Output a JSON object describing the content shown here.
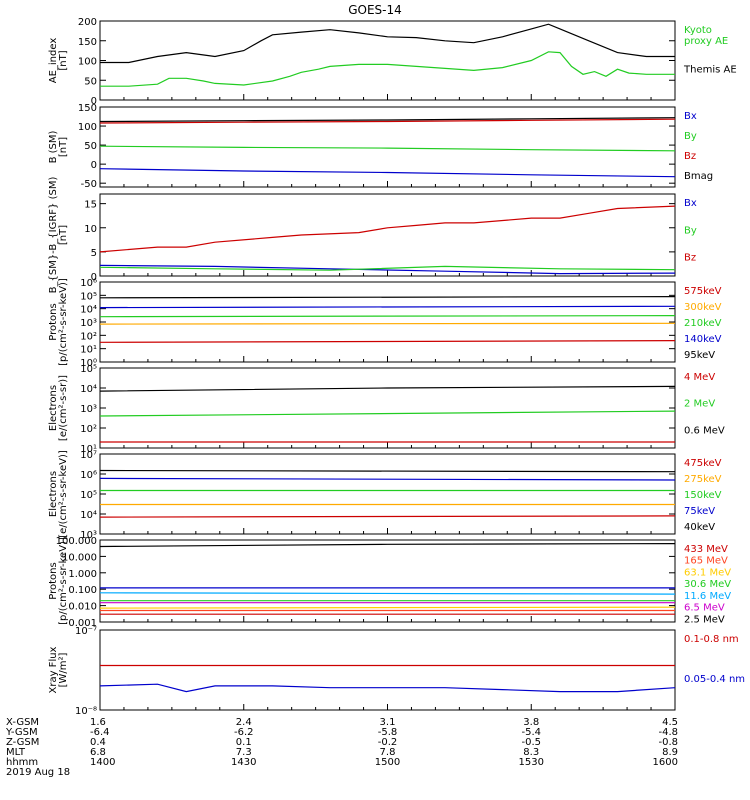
{
  "title": "GOES-14",
  "footer": {
    "row_labels": [
      "X-GSM",
      "Y-GSM",
      "Z-GSM",
      "MLT",
      "hhmm",
      "2019 Aug 18"
    ],
    "columns": [
      [
        "1.6",
        "-6.4",
        "0.4",
        "6.8",
        "1400"
      ],
      [
        "2.4",
        "-6.2",
        "0.1",
        "7.3",
        "1430"
      ],
      [
        "3.1",
        "-5.8",
        "-0.2",
        "7.8",
        "1500"
      ],
      [
        "3.8",
        "-5.4",
        "-0.5",
        "8.3",
        "1530"
      ],
      [
        "4.5",
        "-4.8",
        "-0.8",
        "8.9",
        "1600"
      ]
    ]
  },
  "chart_data": [
    {
      "type": "line",
      "ylabel": "AE_index\n[nT]",
      "ylim": [
        0,
        200
      ],
      "yticks": [
        "0",
        "50",
        "100",
        "150",
        "200"
      ],
      "series": [
        {
          "name": "Kyoto\nproxy AE",
          "color": "#22cc22",
          "x": [
            0,
            5,
            10,
            12,
            15,
            18,
            20,
            25,
            30,
            33,
            35,
            38,
            40,
            45,
            50,
            55,
            60,
            65,
            70,
            75,
            78,
            80,
            82,
            84,
            86,
            88,
            90,
            92,
            95,
            100
          ],
          "y": [
            35,
            35,
            40,
            55,
            55,
            48,
            42,
            38,
            48,
            60,
            70,
            78,
            85,
            90,
            90,
            85,
            80,
            75,
            82,
            100,
            122,
            120,
            85,
            65,
            72,
            60,
            78,
            68,
            65,
            65
          ]
        },
        {
          "name": "Themis AE",
          "color": "#000000",
          "x": [
            0,
            5,
            10,
            15,
            20,
            25,
            28,
            30,
            35,
            40,
            45,
            50,
            55,
            60,
            65,
            70,
            75,
            78,
            80,
            85,
            90,
            95,
            100
          ],
          "y": [
            95,
            95,
            110,
            120,
            110,
            125,
            150,
            165,
            172,
            178,
            170,
            160,
            158,
            150,
            145,
            160,
            180,
            192,
            180,
            150,
            120,
            110,
            110
          ]
        }
      ]
    },
    {
      "type": "line",
      "ylabel": "B (SM)\n[nT]",
      "ylim": [
        -60,
        150
      ],
      "yticks": [
        "-50",
        "0",
        "50",
        "100",
        "150"
      ],
      "series": [
        {
          "name": "Bx",
          "color": "#0000cc",
          "x": [
            0,
            25,
            50,
            75,
            100
          ],
          "y": [
            -12,
            -18,
            -22,
            -28,
            -33
          ]
        },
        {
          "name": "By",
          "color": "#22cc22",
          "x": [
            0,
            25,
            50,
            75,
            100
          ],
          "y": [
            47,
            44,
            42,
            38,
            35
          ]
        },
        {
          "name": "Bz",
          "color": "#cc0000",
          "x": [
            0,
            25,
            50,
            75,
            100
          ],
          "y": [
            108,
            110,
            112,
            115,
            118
          ]
        },
        {
          "name": "Bmag",
          "color": "#000000",
          "x": [
            0,
            25,
            50,
            75,
            100
          ],
          "y": [
            112,
            114,
            116,
            119,
            122
          ]
        }
      ]
    },
    {
      "type": "line",
      "ylabel": "B_{SM}-B_{IGRF} (SM)\n[nT]",
      "ylim": [
        0,
        17
      ],
      "yticks": [
        "0",
        "5",
        "10",
        "15"
      ],
      "series": [
        {
          "name": "Bx",
          "color": "#0000cc",
          "x": [
            0,
            20,
            40,
            60,
            80,
            100
          ],
          "y": [
            2.2,
            2.0,
            1.5,
            1.0,
            0.5,
            0.6
          ]
        },
        {
          "name": "By",
          "color": "#22cc22",
          "x": [
            0,
            20,
            40,
            60,
            80,
            100
          ],
          "y": [
            1.8,
            1.5,
            1.2,
            2.0,
            1.5,
            1.3
          ]
        },
        {
          "name": "Bz",
          "color": "#cc0000",
          "x": [
            0,
            10,
            15,
            20,
            30,
            35,
            45,
            50,
            55,
            60,
            65,
            75,
            80,
            85,
            90,
            100
          ],
          "y": [
            5,
            6,
            6,
            7,
            8,
            8.5,
            9,
            10,
            10.5,
            11,
            11,
            12,
            12,
            13,
            14,
            14.5
          ]
        }
      ]
    },
    {
      "type": "line",
      "ylabel": "Protons\n[p/(cm²-s-sr-keV)]",
      "yscale": "log",
      "ylim": [
        1,
        1000000
      ],
      "yticks": [
        "10⁰",
        "10¹",
        "10²",
        "10³",
        "10⁴",
        "10⁵",
        "10⁶"
      ],
      "series": [
        {
          "name": "575keV",
          "color": "#cc0000",
          "x": [
            0,
            100
          ],
          "y": [
            30,
            40
          ]
        },
        {
          "name": "300keV",
          "color": "#ffaa00",
          "x": [
            0,
            100
          ],
          "y": [
            700,
            800
          ]
        },
        {
          "name": "210keV",
          "color": "#22cc22",
          "x": [
            0,
            100
          ],
          "y": [
            2500,
            3000
          ]
        },
        {
          "name": "140keV",
          "color": "#0000cc",
          "x": [
            0,
            100
          ],
          "y": [
            12000,
            15000
          ]
        },
        {
          "name": "95keV",
          "color": "#000000",
          "x": [
            0,
            100
          ],
          "y": [
            65000,
            80000
          ]
        }
      ]
    },
    {
      "type": "line",
      "ylabel": "Electrons\n[e/(cm²-s-sr)]",
      "yscale": "log",
      "ylim": [
        10,
        100000
      ],
      "yticks": [
        "10¹",
        "10²",
        "10³",
        "10⁴",
        "10⁵"
      ],
      "series": [
        {
          "name": "4 MeV",
          "color": "#cc0000",
          "x": [
            0,
            100
          ],
          "y": [
            20,
            20
          ]
        },
        {
          "name": "2 MeV",
          "color": "#22cc22",
          "x": [
            0,
            100
          ],
          "y": [
            400,
            700
          ]
        },
        {
          "name": "0.6 MeV",
          "color": "#000000",
          "x": [
            0,
            50,
            100
          ],
          "y": [
            7000,
            10000,
            12000
          ]
        }
      ]
    },
    {
      "type": "line",
      "ylabel": "Electrons\n[e/(cm²-s-sr-keV)]",
      "yscale": "log",
      "ylim": [
        1000,
        10000000
      ],
      "yticks": [
        "10³",
        "10⁴",
        "10⁵",
        "10⁶",
        "10⁷"
      ],
      "series": [
        {
          "name": "475keV",
          "color": "#cc0000",
          "x": [
            0,
            100
          ],
          "y": [
            7000,
            8000
          ]
        },
        {
          "name": "275keV",
          "color": "#ffaa00",
          "x": [
            0,
            100
          ],
          "y": [
            30000,
            30000
          ]
        },
        {
          "name": "150keV",
          "color": "#22cc22",
          "x": [
            0,
            100
          ],
          "y": [
            150000,
            150000
          ]
        },
        {
          "name": "75keV",
          "color": "#0000cc",
          "x": [
            0,
            100
          ],
          "y": [
            600000,
            500000
          ]
        },
        {
          "name": "40keV",
          "color": "#000000",
          "x": [
            0,
            100
          ],
          "y": [
            1500000,
            1300000
          ]
        }
      ]
    },
    {
      "type": "line",
      "ylabel": "Protons\n[p/(cm²-s-sr-keV)]",
      "yscale": "log",
      "ylim": [
        0.001,
        100
      ],
      "yticks": [
        "0.001",
        "0.010",
        "0.100",
        "1.000",
        "10.000",
        "100.000"
      ],
      "series": [
        {
          "name": "433 MeV",
          "color": "#cc0000",
          "x": [
            0,
            100
          ],
          "y": [
            0.003,
            0.003
          ]
        },
        {
          "name": "165 MeV",
          "color": "#ff4422",
          "x": [
            0,
            100
          ],
          "y": [
            0.005,
            0.005
          ]
        },
        {
          "name": "63.1 MeV",
          "color": "#ffcc00",
          "x": [
            0,
            100
          ],
          "y": [
            0.007,
            0.008
          ]
        },
        {
          "name": "30.6 MeV",
          "color": "#22cc22",
          "x": [
            0,
            100
          ],
          "y": [
            0.02,
            0.02
          ]
        },
        {
          "name": "11.6 MeV",
          "color": "#00aaff",
          "x": [
            0,
            100
          ],
          "y": [
            0.06,
            0.05
          ]
        },
        {
          "name": "6.5 MeV",
          "color": "#cc00cc",
          "x": [
            0,
            100
          ],
          "y": [
            0.015,
            0.015
          ]
        },
        {
          "name": "2.5 MeV",
          "color": "#000000",
          "x": [
            0,
            50,
            100
          ],
          "y": [
            40,
            55,
            60
          ]
        },
        {
          "name": "",
          "color": "#0000cc",
          "x": [
            0,
            100
          ],
          "y": [
            0.12,
            0.12
          ]
        }
      ]
    },
    {
      "type": "line",
      "ylabel": "Xray Flux\n[W/m²]",
      "yscale": "log",
      "ylim": [
        1e-08,
        1e-07
      ],
      "yticks": [
        "10⁻⁸",
        "10⁻⁷"
      ],
      "series": [
        {
          "name": "0.1-0.8 nm",
          "color": "#cc0000",
          "x": [
            0,
            100
          ],
          "y": [
            3.6e-08,
            3.6e-08
          ]
        },
        {
          "name": "0.05-0.4 nm",
          "color": "#0000cc",
          "x": [
            0,
            10,
            15,
            20,
            30,
            40,
            50,
            60,
            70,
            80,
            90,
            100
          ],
          "y": [
            2e-08,
            2.1e-08,
            1.7e-08,
            2e-08,
            2e-08,
            1.9e-08,
            1.9e-08,
            1.9e-08,
            1.8e-08,
            1.7e-08,
            1.7e-08,
            1.9e-08
          ]
        }
      ]
    }
  ]
}
